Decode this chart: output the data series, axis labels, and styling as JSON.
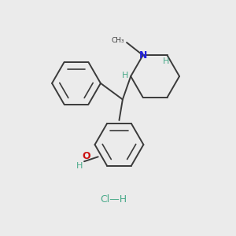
{
  "bg_color": "#ebebeb",
  "bond_color": "#3a3a3a",
  "N_color": "#2020dd",
  "O_color": "#cc1010",
  "H_teal_color": "#4aaa8a",
  "Cl_color": "#4aaa8a",
  "N_label": "N",
  "O_label": "O",
  "H_label": "H",
  "Cl_label": "Cl—H",
  "methyl_label": "CH₃",
  "lw": 1.4,
  "lw_double": 1.2,
  "aromatic_scale": 0.72
}
